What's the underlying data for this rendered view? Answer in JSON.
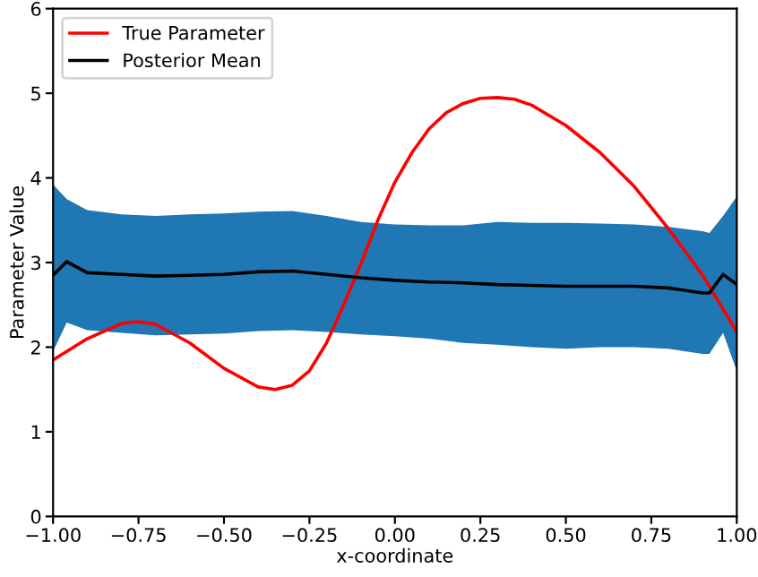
{
  "chart_data": {
    "type": "line",
    "xlabel": "x-coordinate",
    "ylabel": "Parameter Value",
    "xlim": [
      -1.0,
      1.0
    ],
    "xticks": [
      {
        "value": -1.0,
        "label": "−1.00"
      },
      {
        "value": -0.75,
        "label": "−0.75"
      },
      {
        "value": -0.5,
        "label": "−0.50"
      },
      {
        "value": -0.25,
        "label": "−0.25"
      },
      {
        "value": 0,
        "label": "0.00"
      },
      {
        "value": 0.25,
        "label": "0.25"
      },
      {
        "value": 0.5,
        "label": "0.50"
      },
      {
        "value": 0.75,
        "label": "0.75"
      },
      {
        "value": 1.0,
        "label": "1.00"
      }
    ],
    "ylim": [
      0,
      6
    ],
    "yticks": [
      0,
      1,
      2,
      3,
      4,
      5,
      6
    ],
    "legend": "top left",
    "line_style": "solid",
    "series": [
      {
        "name": "True Parameter",
        "color": "#ff0000",
        "x": [
          -1.0,
          -0.9,
          -0.8,
          -0.75,
          -0.7,
          -0.6,
          -0.5,
          -0.4,
          -0.35,
          -0.3,
          -0.25,
          -0.2,
          -0.15,
          -0.1,
          -0.05,
          0.0,
          0.05,
          0.1,
          0.15,
          0.2,
          0.25,
          0.3,
          0.35,
          0.4,
          0.5,
          0.6,
          0.7,
          0.8,
          0.9,
          1.0
        ],
        "values": [
          1.85,
          2.1,
          2.28,
          2.3,
          2.27,
          2.05,
          1.75,
          1.53,
          1.5,
          1.55,
          1.72,
          2.05,
          2.5,
          2.98,
          3.5,
          3.95,
          4.3,
          4.58,
          4.77,
          4.88,
          4.94,
          4.95,
          4.93,
          4.86,
          4.62,
          4.3,
          3.9,
          3.4,
          2.85,
          2.18
        ]
      },
      {
        "name": "Posterior Mean",
        "color": "#000000",
        "x": [
          -1.0,
          -0.96,
          -0.9,
          -0.8,
          -0.7,
          -0.6,
          -0.5,
          -0.4,
          -0.3,
          -0.2,
          -0.1,
          0.0,
          0.1,
          0.2,
          0.3,
          0.4,
          0.5,
          0.6,
          0.7,
          0.8,
          0.9,
          0.92,
          0.96,
          1.0
        ],
        "values": [
          2.85,
          3.01,
          2.88,
          2.86,
          2.84,
          2.85,
          2.86,
          2.89,
          2.9,
          2.86,
          2.82,
          2.79,
          2.77,
          2.76,
          2.74,
          2.73,
          2.72,
          2.72,
          2.72,
          2.7,
          2.64,
          2.64,
          2.86,
          2.74
        ],
        "lower": [
          1.95,
          2.29,
          2.2,
          2.17,
          2.14,
          2.15,
          2.16,
          2.19,
          2.2,
          2.18,
          2.15,
          2.13,
          2.1,
          2.05,
          2.03,
          2.0,
          1.98,
          2.0,
          2.0,
          1.98,
          1.92,
          1.92,
          2.17,
          1.72
        ],
        "upper": [
          3.92,
          3.75,
          3.62,
          3.57,
          3.55,
          3.57,
          3.58,
          3.6,
          3.61,
          3.55,
          3.48,
          3.45,
          3.44,
          3.44,
          3.48,
          3.47,
          3.47,
          3.46,
          3.45,
          3.42,
          3.37,
          3.35,
          3.55,
          3.78
        ]
      }
    ]
  }
}
